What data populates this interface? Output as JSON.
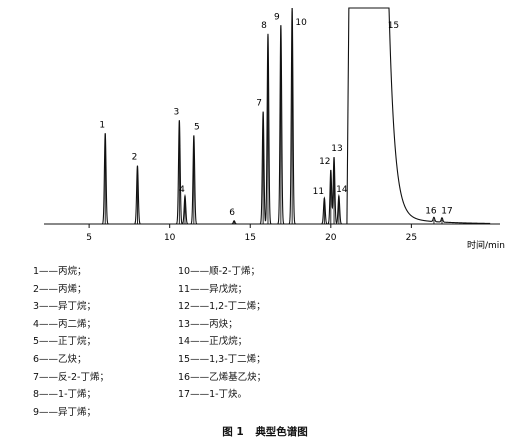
{
  "chart_data": {
    "type": "line",
    "title": "",
    "xlabel": "时间/min",
    "ylabel": "",
    "xlim": [
      2.2,
      30.5
    ],
    "ylim": [
      0,
      100
    ],
    "xticks": [
      5,
      10,
      15,
      20,
      25
    ],
    "grid": false,
    "peaks": [
      {
        "label": "1",
        "x": 6.0,
        "height": 42
      },
      {
        "label": "2",
        "x": 8.0,
        "height": 27
      },
      {
        "label": "3",
        "x": 10.6,
        "height": 48
      },
      {
        "label": "4",
        "x": 10.95,
        "height": 13
      },
      {
        "label": "5",
        "x": 11.5,
        "height": 41
      },
      {
        "label": "6",
        "x": 14.0,
        "height": 1.5
      },
      {
        "label": "7",
        "x": 15.8,
        "height": 52
      },
      {
        "label": "8",
        "x": 16.1,
        "height": 88
      },
      {
        "label": "9",
        "x": 16.9,
        "height": 92
      },
      {
        "label": "10",
        "x": 17.6,
        "height": 100
      },
      {
        "label": "11",
        "x": 19.6,
        "height": 12
      },
      {
        "label": "12",
        "x": 20.0,
        "height": 25
      },
      {
        "label": "13",
        "x": 20.2,
        "height": 31
      },
      {
        "label": "14",
        "x": 20.5,
        "height": 13
      },
      {
        "label": "15",
        "x": 21.9,
        "height": 100
      },
      {
        "label": "16",
        "x": 26.4,
        "height": 2
      },
      {
        "label": "17",
        "x": 26.9,
        "height": 2
      }
    ],
    "legend": [
      "1——丙烷；",
      "2——丙烯；",
      "3——异丁烷；",
      "4——丙二烯；",
      "5——正丁烷；",
      "6——乙炔；",
      "7——反-2-丁烯；",
      "8——1-丁烯；",
      "9——异丁烯；",
      "10——顺-2-丁烯；",
      "11——异戊烷；",
      "12——1,2-丁二烯；",
      "13——丙炔；",
      "14——正戊烷；",
      "15——1,3-丁二烯；",
      "16——乙烯基乙炔；",
      "17——1-丁炔。"
    ],
    "figure_label": "图 1",
    "figure_title": "典型色谱图"
  }
}
